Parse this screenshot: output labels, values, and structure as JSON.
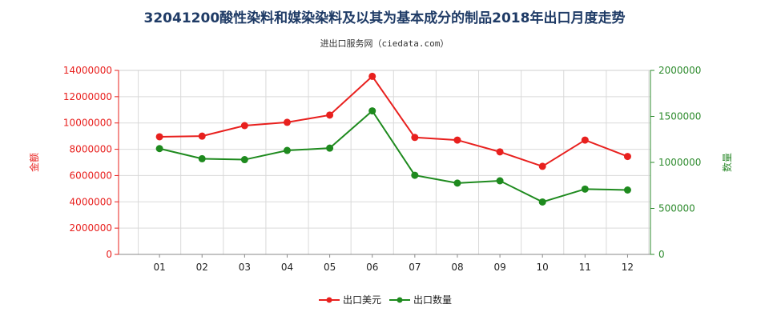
{
  "title": "32041200酸性染料和媒染染料及以其为基本成分的制品2018年出口月度走势",
  "subtitle": "进出口服务网（ciedata.com）",
  "colors": {
    "series_value": "#e8201e",
    "series_quantity": "#1e8a1e",
    "title": "#1f3b66"
  },
  "chart_data": {
    "type": "line",
    "categories": [
      "01",
      "02",
      "03",
      "04",
      "05",
      "06",
      "07",
      "08",
      "09",
      "10",
      "11",
      "12"
    ],
    "y_left": {
      "label": "金额",
      "ylim": [
        0,
        14000000
      ],
      "ticks": [
        0,
        2000000,
        4000000,
        6000000,
        8000000,
        10000000,
        12000000,
        14000000
      ],
      "tick_labels": [
        "0",
        "2000000",
        "4000000",
        "6000000",
        "8000000",
        "10000000",
        "12000000",
        "14000000"
      ]
    },
    "y_right": {
      "label": "数量",
      "ylim": [
        0,
        2000000
      ],
      "ticks": [
        0,
        500000,
        1000000,
        1500000,
        2000000
      ],
      "tick_labels": [
        "0",
        "500000",
        "1000000",
        "1500000",
        "2000000"
      ]
    },
    "series": [
      {
        "name": "出口美元",
        "axis": "left",
        "values": [
          8950000,
          9000000,
          9800000,
          10050000,
          10600000,
          13550000,
          8900000,
          8700000,
          7800000,
          6700000,
          8700000,
          7450000
        ]
      },
      {
        "name": "出口数量",
        "axis": "right",
        "values": [
          1150000,
          1040000,
          1030000,
          1130000,
          1155000,
          1560000,
          860000,
          775000,
          800000,
          570000,
          710000,
          700000
        ]
      }
    ],
    "grid": true,
    "legend_position": "bottom-center"
  }
}
